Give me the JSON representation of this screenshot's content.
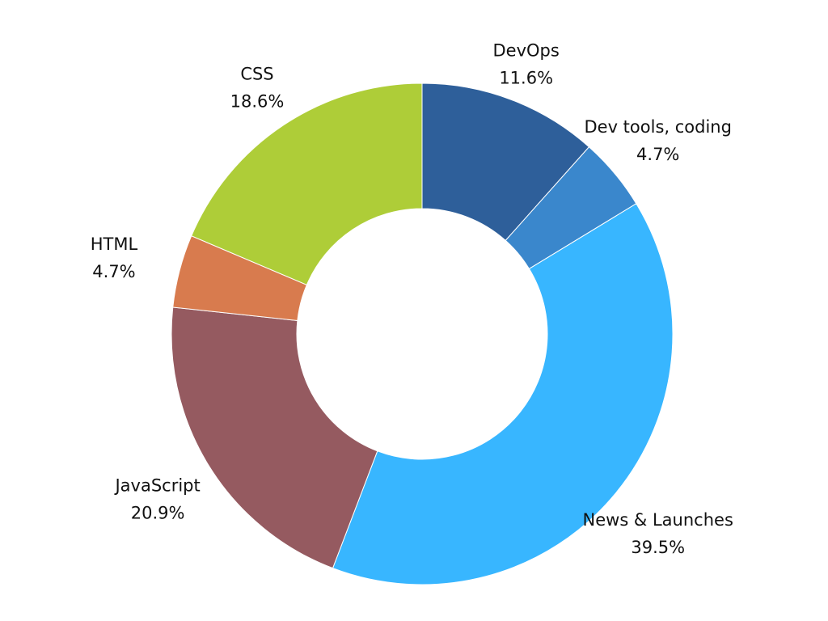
{
  "chart_data": {
    "type": "pie",
    "donut": true,
    "start_angle": "top, clockwise",
    "slices": [
      {
        "label": "DevOps",
        "value": 11.6,
        "display": "11.6%",
        "color": "#2e5f9a"
      },
      {
        "label": "Dev tools, coding",
        "value": 4.7,
        "display": "4.7%",
        "color": "#3a87cc"
      },
      {
        "label": "News & Launches",
        "value": 39.5,
        "display": "39.5%",
        "color": "#38b6ff"
      },
      {
        "label": "JavaScript",
        "value": 20.9,
        "display": "20.9%",
        "color": "#955a60"
      },
      {
        "label": "HTML",
        "value": 4.7,
        "display": "4.7%",
        "color": "#d87b4e"
      },
      {
        "label": "CSS",
        "value": 18.6,
        "display": "18.6%",
        "color": "#aecd38"
      }
    ]
  }
}
